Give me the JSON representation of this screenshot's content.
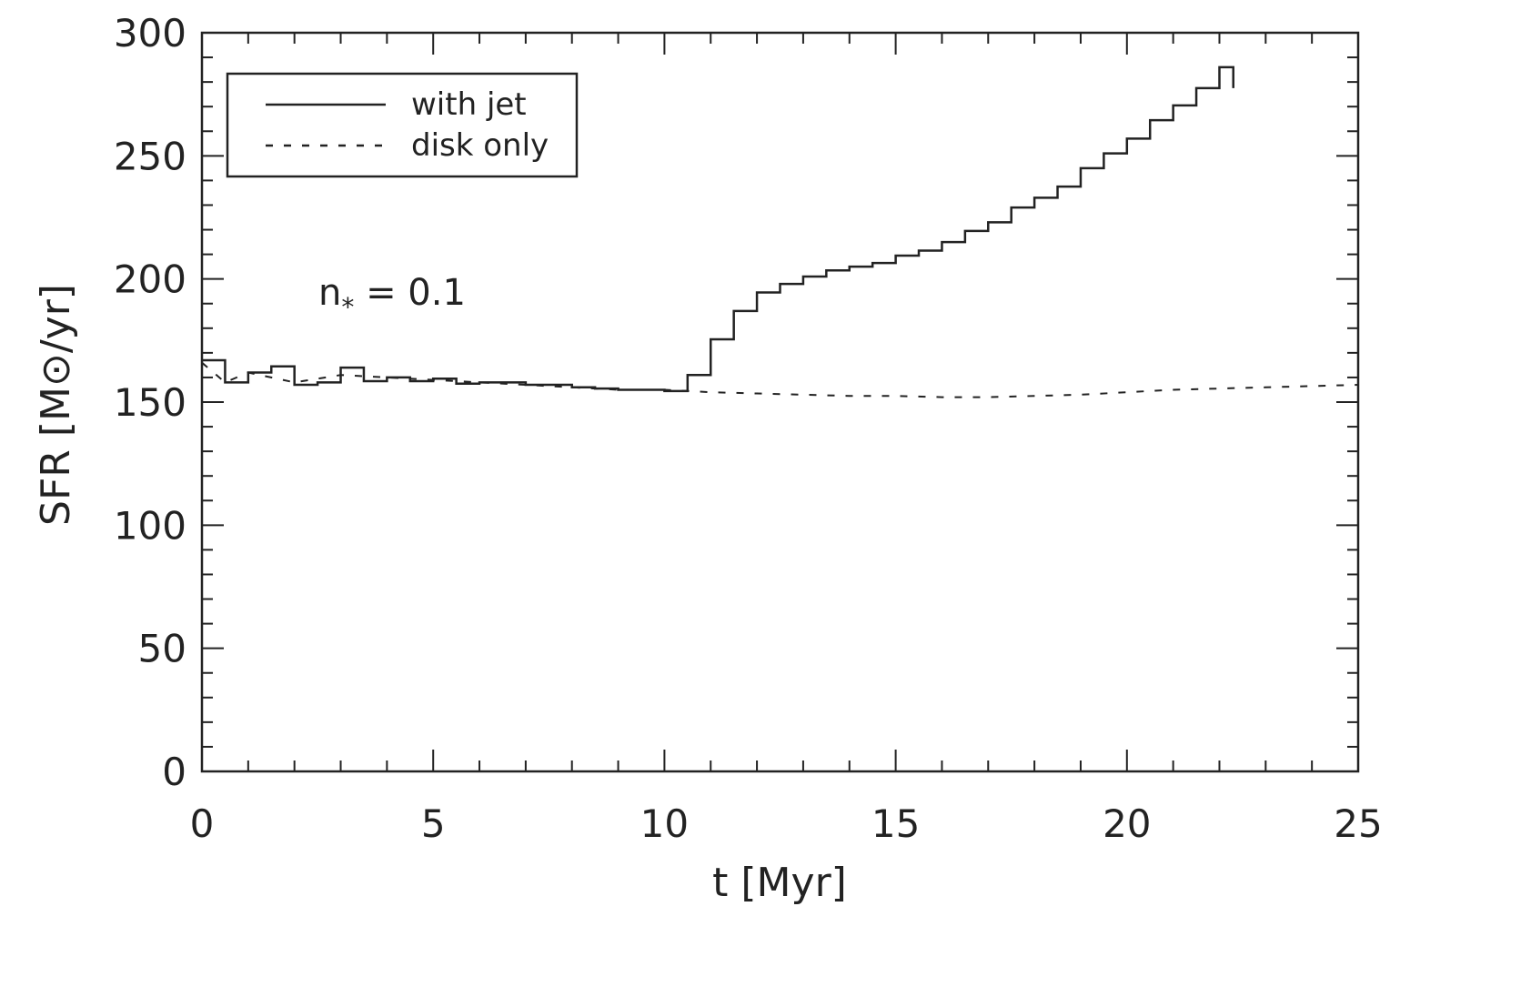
{
  "chart_data": {
    "type": "line",
    "title": "",
    "xlabel": "t   [Myr]",
    "ylabel": "SFR   [M⊙/yr]",
    "xlim": [
      0,
      25
    ],
    "ylim": [
      0,
      300
    ],
    "xticks": [
      "0",
      "5",
      "10",
      "15",
      "20",
      "25"
    ],
    "yticks": [
      "0",
      "50",
      "100",
      "150",
      "200",
      "250",
      "300"
    ],
    "grid": false,
    "legend": "top-left",
    "annotation": {
      "base": "n",
      "sub": "*",
      "rest": " = 0.1"
    },
    "series": [
      {
        "name": "with jet",
        "style": "solid",
        "step": true,
        "x": [
          0,
          0.5,
          1,
          1.5,
          2,
          2.5,
          3,
          3.5,
          4,
          4.5,
          5,
          5.5,
          6,
          6.5,
          7,
          7.5,
          8,
          8.5,
          9,
          9.5,
          10,
          10.5,
          11,
          11.5,
          12,
          12.5,
          13,
          13.5,
          14,
          14.5,
          15,
          15.5,
          16,
          16.5,
          17,
          17.5,
          18,
          18.5,
          19,
          19.5,
          20,
          20.5,
          21,
          21.5,
          22
        ],
        "y": [
          167,
          158,
          162,
          164.5,
          157,
          158,
          164,
          158.5,
          160,
          158.5,
          159.5,
          157.5,
          158,
          158,
          157,
          157,
          156,
          155.5,
          155,
          155,
          154.5,
          161,
          175.5,
          187,
          194.5,
          198,
          201,
          203.5,
          205,
          206.5,
          209.5,
          211.5,
          215,
          219.5,
          223,
          229,
          233,
          237.5,
          245,
          251,
          257,
          264.5,
          270.5,
          277.5,
          286
        ],
        "x_end": 22.3
      },
      {
        "name": "disk only",
        "style": "dashed",
        "x": [
          0,
          0.5,
          1,
          2,
          3,
          4,
          5,
          6,
          7,
          8,
          9,
          10,
          11,
          12,
          13,
          14,
          15,
          16,
          17,
          18,
          19,
          20,
          21,
          22,
          23,
          24,
          25
        ],
        "y": [
          166,
          158,
          162,
          158,
          161,
          160,
          159,
          158,
          157,
          156,
          155,
          155,
          154,
          153.5,
          153,
          152.5,
          152.5,
          152,
          152,
          152.5,
          153,
          154,
          155,
          155.5,
          156,
          156.5,
          157
        ]
      }
    ]
  }
}
